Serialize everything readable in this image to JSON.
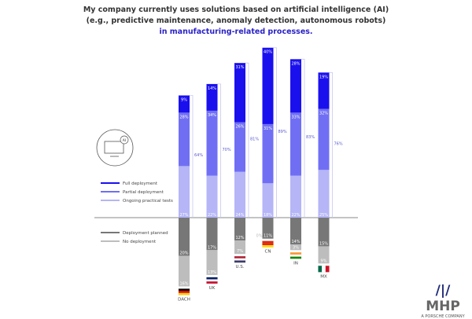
{
  "chart_data": {
    "type": "bar",
    "stacked": true,
    "title": [
      "My company currently uses solutions based on artificial intelligence (AI)",
      "(e.g., predictive maintenance, anomaly detection, autonomous robots)",
      "in manufacturing-related processes."
    ],
    "categories": [
      "DACH",
      "UK",
      "U.S.",
      "CN",
      "IN",
      "MX"
    ],
    "unit": "%",
    "positive_series": [
      {
        "name": "Ongoing practical tests",
        "color": "#b5b5f7",
        "values": [
          27,
          22,
          24,
          18,
          22,
          25
        ]
      },
      {
        "name": "Partial deployment",
        "color": "#706ff4",
        "values": [
          28,
          34,
          26,
          31,
          33,
          32
        ]
      },
      {
        "name": "Full deployment",
        "color": "#1a10ee",
        "values": [
          9,
          14,
          31,
          40,
          28,
          19
        ]
      }
    ],
    "totals": [
      64,
      70,
      81,
      89,
      83,
      76
    ],
    "negative_series": [
      {
        "name": "Deployment planned",
        "color": "#777777",
        "values": [
          20,
          17,
          12,
          11,
          14,
          15
        ]
      },
      {
        "name": "No deployment",
        "color": "#bdbdbd",
        "values": [
          16,
          13,
          7,
          0,
          3,
          9
        ]
      }
    ],
    "legend_order": [
      "Full deployment",
      "Partial deployment",
      "Ongoing practical tests",
      "Deployment planned",
      "No deployment"
    ],
    "legend_placement": "left",
    "grid": false
  },
  "icon": {
    "name": "ai-monitor-icon",
    "text": "AI"
  },
  "logo": {
    "mark": "MHP",
    "sub": "A PORSCHE COMPANY"
  }
}
